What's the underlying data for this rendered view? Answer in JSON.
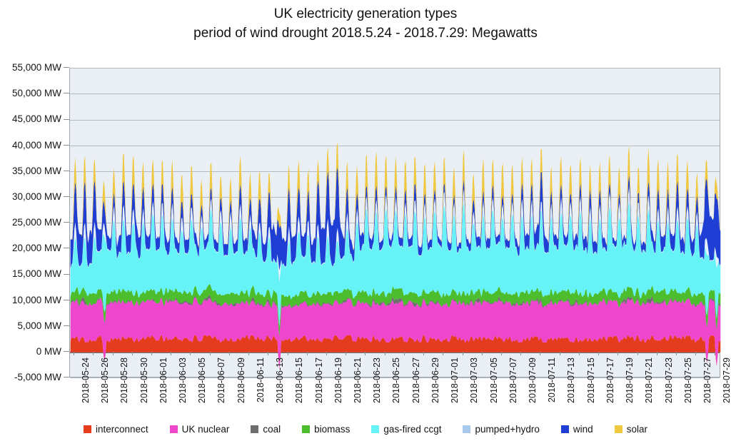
{
  "title": {
    "line1": "UK electricity generation types",
    "line2": "period of wind drought 2018.5.24 - 2018.7.29: Megawatts"
  },
  "y_axis": {
    "unit": "MW",
    "max_mw": 55000,
    "min_mw": -5000,
    "step_mw": 5000,
    "tick_labels": [
      "55,000 MW",
      "50,000 MW",
      "45,000 MW",
      "40,000 MW",
      "35,000 MW",
      "30,000 MW",
      "25,000 MW",
      "20,000 MW",
      "15,000 MW",
      "10,000 MW",
      "5,000 MW",
      "0 MW",
      "-5,000 MW"
    ]
  },
  "x_axis": {
    "start_date": "2018-05-24",
    "end_date": "2018-07-29",
    "days": 67,
    "tick_every_days": 2,
    "tick_labels": [
      "2018-05-24",
      "2018-05-26",
      "2018-05-28",
      "2018-05-30",
      "2018-06-01",
      "2018-06-03",
      "2018-06-05",
      "2018-06-07",
      "2018-06-09",
      "2018-06-11",
      "2018-06-13",
      "2018-06-15",
      "2018-06-17",
      "2018-06-19",
      "2018-06-21",
      "2018-06-23",
      "2018-06-25",
      "2018-06-27",
      "2018-06-29",
      "2018-07-01",
      "2018-07-03",
      "2018-07-05",
      "2018-07-07",
      "2018-07-09",
      "2018-07-11",
      "2018-07-13",
      "2018-07-15",
      "2018-07-17",
      "2018-07-19",
      "2018-07-21",
      "2018-07-23",
      "2018-07-25",
      "2018-07-27",
      "2018-07-29"
    ]
  },
  "colors": {
    "plot_background": "#e9eff5",
    "gridline": "#b3bac0",
    "zero_line": "#70767c",
    "plot_border": "#9fa6ad",
    "text": "#141414"
  },
  "chart_data": {
    "type": "area",
    "stacked": true,
    "title": "UK electricity generation types, period of wind drought 2018.5.24 - 2018.7.29",
    "unit": "MW",
    "ylim": [
      -5000,
      55000
    ],
    "grid": "horizontal-only",
    "legend_position": "bottom",
    "stack_order_bottom_to_top": [
      "interconnect",
      "UK nuclear",
      "coal",
      "biomass",
      "gas-fired ccgt",
      "pumped+hydro",
      "wind",
      "solar"
    ],
    "series": [
      {
        "name": "interconnect",
        "color": "#e63c1e",
        "model": "flat",
        "base_mw": 2650,
        "noise_mw": 1400,
        "negative_dips": [
          {
            "day": 3,
            "mw": -1600
          },
          {
            "day": 21,
            "mw": -3200
          },
          {
            "day": 65,
            "mw": -2000
          },
          {
            "day": 66,
            "mw": -2600
          }
        ]
      },
      {
        "name": "UK nuclear",
        "color": "#ee46cc",
        "model": "daily",
        "noise_mw": 520,
        "daily_mw": [
          7150,
          7150,
          7100,
          7150,
          7200,
          7150,
          7100,
          7150,
          7150,
          7100,
          7150,
          7100,
          7050,
          7000,
          6950,
          6900,
          6850,
          6800,
          6600,
          6500,
          6400,
          6400,
          6450,
          6500,
          6600,
          6700,
          6750,
          6750,
          6800,
          6800,
          6850,
          6900,
          6900,
          6900,
          6900,
          6900,
          6900,
          6900,
          6900,
          6950,
          6950,
          6950,
          6950,
          6950,
          6950,
          6950,
          6950,
          6950,
          7000,
          7000,
          7000,
          7000,
          7000,
          7000,
          7000,
          7000,
          7000,
          7000,
          7000,
          7000,
          7000,
          7000,
          7000,
          7000,
          6950,
          6900,
          6900
        ]
      },
      {
        "name": "coal",
        "color": "#6e6e6e",
        "model": "flat",
        "base_mw": 180,
        "noise_mw": 520,
        "burst_mw": 700,
        "min_mw": 0
      },
      {
        "name": "biomass",
        "color": "#4cbe2e",
        "model": "flat",
        "base_mw": 1850,
        "noise_mw": 780
      },
      {
        "name": "gas-fired ccgt",
        "color": "#66f3f8",
        "model": "daily-diurnal",
        "night_factor": 0.62,
        "midday_extra_factor": 0.5,
        "noise_factor": 0.2,
        "daily_mw": [
          9800,
          9200,
          9600,
          12000,
          12500,
          12200,
          11800,
          12000,
          12500,
          13000,
          12800,
          12500,
          12800,
          13000,
          13400,
          13000,
          13200,
          12800,
          12500,
          12200,
          10500,
          8500,
          9800,
          11000,
          10400,
          9800,
          9000,
          9400,
          10800,
          12500,
          13500,
          13800,
          14200,
          14000,
          13800,
          13400,
          13600,
          13800,
          14200,
          14000,
          13800,
          13400,
          13600,
          13800,
          14000,
          13800,
          13400,
          13000,
          12800,
          13000,
          13400,
          13600,
          13400,
          13000,
          13400,
          13600,
          13800,
          14000,
          13800,
          13600,
          13400,
          13000,
          12800,
          13000,
          12500,
          10000,
          9200
        ]
      },
      {
        "name": "pumped+hydro",
        "color": "#a9c9ec",
        "chart_color": "#e4f1fd",
        "model": "diurnal-bell",
        "night_mw": 140,
        "midday_mw": 2500
      },
      {
        "name": "wind",
        "color": "#1f3fd4",
        "model": "daily-diurnal",
        "night_factor": 0.8,
        "midday_extra_factor": 0.35,
        "daily_mw": [
          5500,
          7000,
          6500,
          4500,
          3200,
          3800,
          4600,
          4200,
          3200,
          2600,
          3000,
          3600,
          3100,
          2600,
          2100,
          2600,
          2200,
          2700,
          3200,
          3800,
          6200,
          8400,
          7200,
          5200,
          6200,
          7200,
          8600,
          8000,
          5200,
          3200,
          2200,
          1900,
          1600,
          1700,
          2100,
          2600,
          2100,
          1900,
          1600,
          1700,
          2100,
          2600,
          2200,
          1900,
          1600,
          1900,
          2600,
          3100,
          3600,
          3100,
          2600,
          2100,
          2600,
          3100,
          2600,
          2100,
          1900,
          1600,
          1900,
          2100,
          2600,
          3100,
          3600,
          3100,
          4200,
          8200,
          9200
        ]
      },
      {
        "name": "solar",
        "color": "#f0c840",
        "model": "daylight-bell",
        "daily_peak_mw": [
          4300,
          4800,
          4200,
          4200,
          5000,
          5400,
          5600,
          5200,
          4600,
          5000,
          5200,
          4800,
          5400,
          5600,
          5200,
          4800,
          5000,
          5400,
          5600,
          5200,
          4200,
          3400,
          4600,
          5200,
          4400,
          4000,
          4600,
          5000,
          5400,
          5800,
          6000,
          6200,
          6000,
          6200,
          5800,
          5600,
          6000,
          5800,
          5600,
          6000,
          6200,
          5800,
          6000,
          5600,
          6200,
          6000,
          5400,
          5000,
          4600,
          5200,
          5600,
          5800,
          5400,
          5000,
          5600,
          6000,
          5800,
          5400,
          5800,
          6000,
          6200,
          6000,
          5800,
          5400,
          5000,
          3800,
          3000
        ]
      }
    ]
  }
}
